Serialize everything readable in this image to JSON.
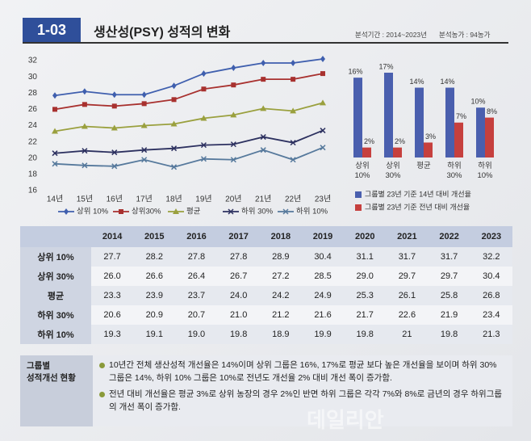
{
  "header": {
    "number": "1-03",
    "title": "생산성(PSY) 성적의 변화",
    "period": "분석기간 : 2014~2023년",
    "farms": "분석농가 : 94농가"
  },
  "chart_data": [
    {
      "type": "line",
      "categories": [
        "14년",
        "15년",
        "16년",
        "17년",
        "18년",
        "19년",
        "20년",
        "21년",
        "22년",
        "23년"
      ],
      "ylim": [
        16,
        32
      ],
      "yticks": [
        16,
        18,
        20,
        22,
        24,
        26,
        28,
        30,
        32
      ],
      "grid": false,
      "series": [
        {
          "name": "상위 10%",
          "color": "#3f5fae",
          "marker": "diamond",
          "values": [
            27.7,
            28.2,
            27.8,
            27.8,
            28.9,
            30.4,
            31.1,
            31.7,
            31.7,
            32.2
          ]
        },
        {
          "name": "상위30%",
          "color": "#a8312f",
          "marker": "square",
          "values": [
            26.0,
            26.6,
            26.4,
            26.7,
            27.2,
            28.5,
            29.0,
            29.7,
            29.7,
            30.4
          ]
        },
        {
          "name": "평균",
          "color": "#9aa03e",
          "marker": "triangle",
          "values": [
            23.3,
            23.9,
            23.7,
            24.0,
            24.2,
            24.9,
            25.3,
            26.1,
            25.8,
            26.8
          ]
        },
        {
          "name": "하위 30%",
          "color": "#2d3160",
          "marker": "x",
          "values": [
            20.6,
            20.9,
            20.7,
            21.0,
            21.2,
            21.6,
            21.7,
            22.6,
            21.9,
            23.4
          ]
        },
        {
          "name": "하위 10%",
          "color": "#56799c",
          "marker": "x",
          "values": [
            19.3,
            19.1,
            19.0,
            19.8,
            18.9,
            19.9,
            19.8,
            21,
            19.8,
            21.3
          ]
        }
      ]
    },
    {
      "type": "bar",
      "categories": [
        "상위\n10%",
        "상위\n30%",
        "평균",
        "하위\n30%",
        "하위\n10%"
      ],
      "series": [
        {
          "name": "그룹별 23년 기준 14년 대비 개선율",
          "color": "#4a5fae",
          "values": [
            16,
            17,
            14,
            14,
            10
          ],
          "value_labels": [
            "16%",
            "17%",
            "14%",
            "14%",
            "10%"
          ]
        },
        {
          "name": "그룹별 23년 기준 전년 대비 개선율",
          "color": "#c6403e",
          "values": [
            2,
            2,
            3,
            7,
            8
          ],
          "value_labels": [
            "2%",
            "2%",
            "3%",
            "7%",
            "8%"
          ]
        }
      ]
    }
  ],
  "table": {
    "columns": [
      "2014",
      "2015",
      "2016",
      "2017",
      "2018",
      "2019",
      "2020",
      "2021",
      "2022",
      "2023"
    ],
    "rows": [
      {
        "label": "상위 10%",
        "cells": [
          "27.7",
          "28.2",
          "27.8",
          "27.8",
          "28.9",
          "30.4",
          "31.1",
          "31.7",
          "31.7",
          "32.2"
        ]
      },
      {
        "label": "상위 30%",
        "cells": [
          "26.0",
          "26.6",
          "26.4",
          "26.7",
          "27.2",
          "28.5",
          "29.0",
          "29.7",
          "29.7",
          "30.4"
        ]
      },
      {
        "label": "평균",
        "cells": [
          "23.3",
          "23.9",
          "23.7",
          "24.0",
          "24.2",
          "24.9",
          "25.3",
          "26.1",
          "25.8",
          "26.8"
        ]
      },
      {
        "label": "하위 30%",
        "cells": [
          "20.6",
          "20.9",
          "20.7",
          "21.0",
          "21.2",
          "21.6",
          "21.7",
          "22.6",
          "21.9",
          "23.4"
        ]
      },
      {
        "label": "하위 10%",
        "cells": [
          "19.3",
          "19.1",
          "19.0",
          "19.8",
          "18.9",
          "19.9",
          "19.8",
          "21",
          "19.8",
          "21.3"
        ]
      }
    ]
  },
  "notes": {
    "label": "그룹별\n성적개선 현황",
    "bullets": [
      "10년간 전체 생산성적 개선율은 14%이며 상위 그룹은 16%, 17%로 평균 보다 높은 개선율을 보이며 하위 30% 그룹은 14%, 하위 10% 그룹은 10%로 전년도 개선율 2% 대비 개선 폭이 증가함.",
      "전년 대비 개선율은 평균 3%로 상위 농장의 경우 2%인 반면 하위 그룹은 각각 7%와 8%로 금년의 경우 하위그룹의 개선 폭이 증가함."
    ]
  },
  "watermark": "데일리안"
}
